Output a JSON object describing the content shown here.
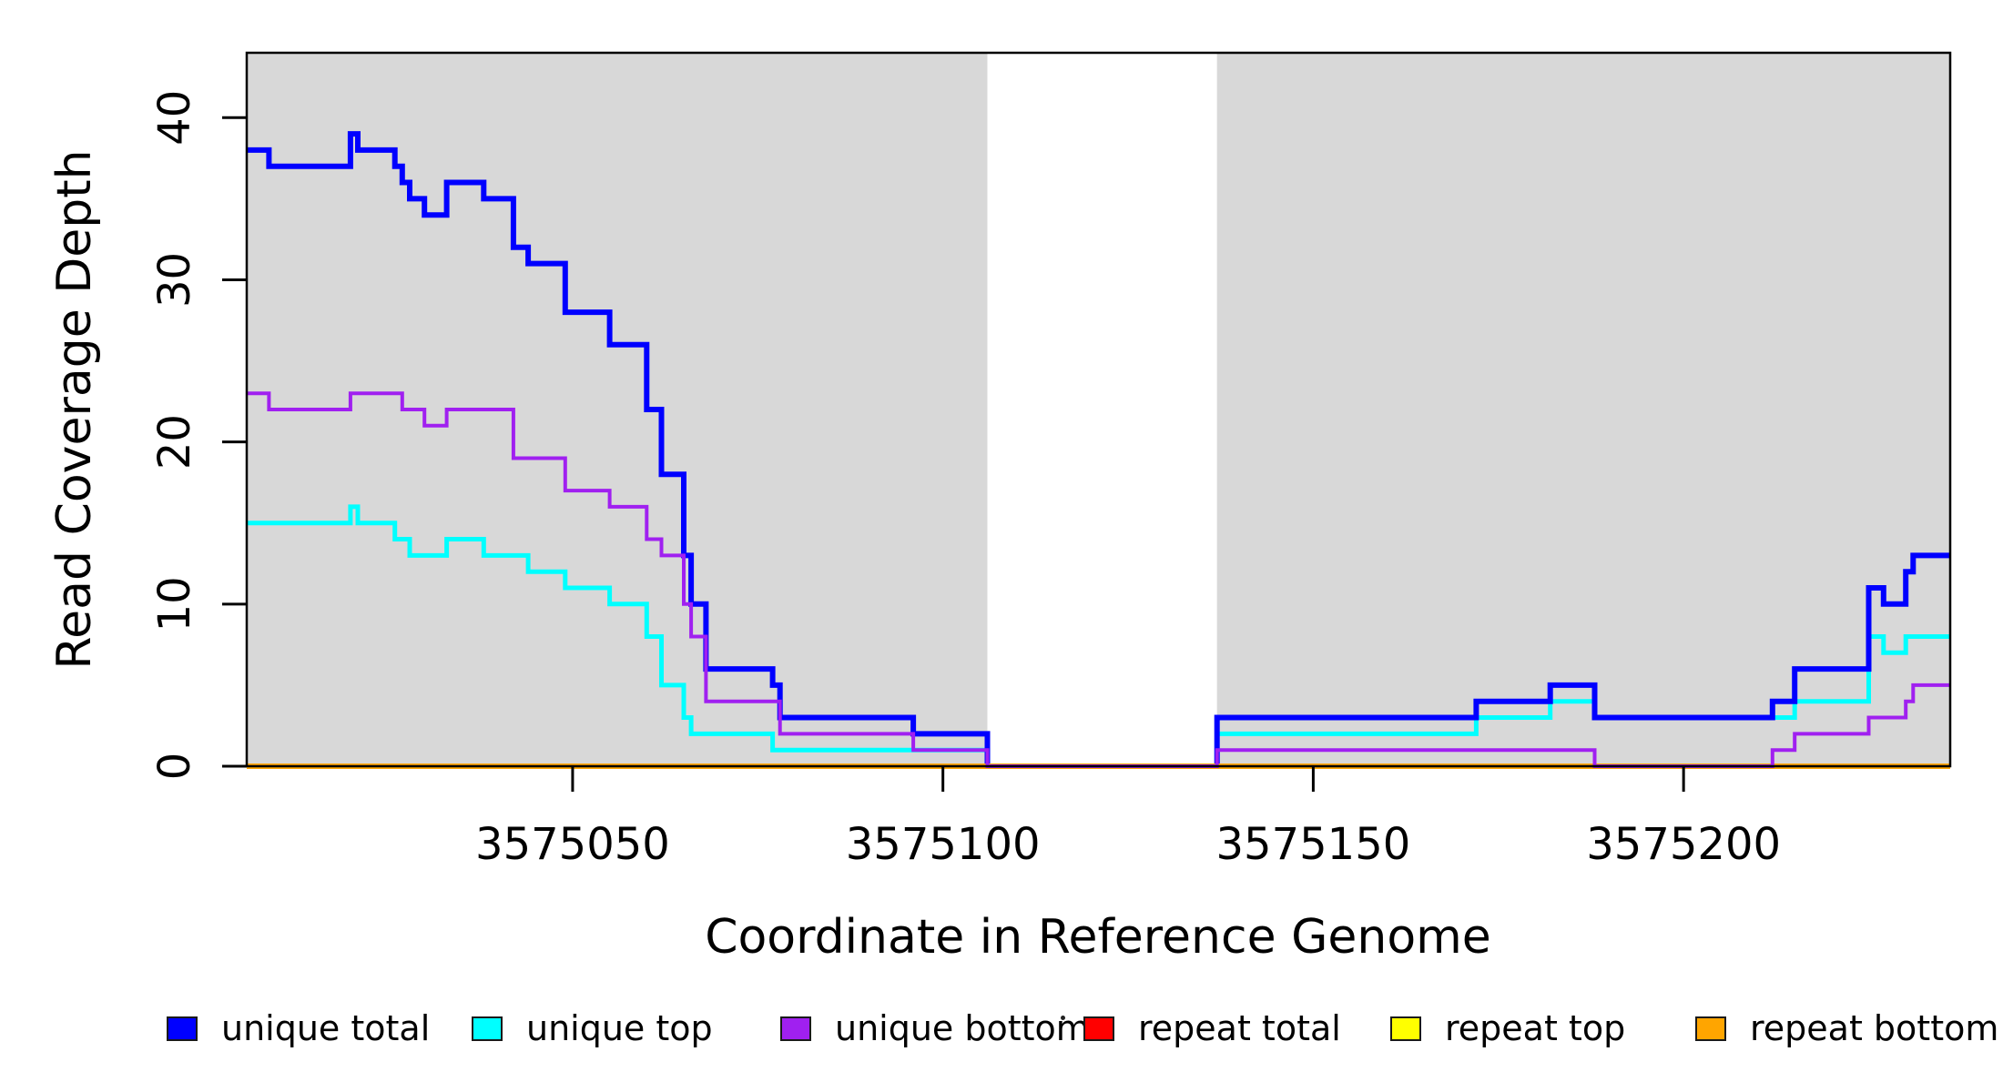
{
  "figure": {
    "background": "#ffffff",
    "x_axis_title": "Coordinate in Reference Genome",
    "y_axis_title": "Read Coverage Depth"
  },
  "chart_data": {
    "type": "line",
    "subtype": "step-after-coverage-plot",
    "title": "",
    "xlabel": "Coordinate in Reference Genome",
    "ylabel": "Read Coverage Depth",
    "xlim": [
      3575006,
      3575236
    ],
    "ylim": [
      0,
      44
    ],
    "xticks": [
      3575050,
      3575100,
      3575150,
      3575200
    ],
    "xtick_labels": [
      "3575050",
      "3575100",
      "3575150",
      "3575200"
    ],
    "yticks": [
      0,
      10,
      20,
      30,
      40
    ],
    "ytick_labels": [
      "0",
      "10",
      "20",
      "30",
      "40"
    ],
    "grid": false,
    "plot_background": "#ffffff",
    "shaded_regions": [
      {
        "name": "covered-region-left",
        "start": 3575006,
        "end": 3575106,
        "color": "#d8d8d8"
      },
      {
        "name": "covered-region-right",
        "start": 3575137,
        "end": 3575236,
        "color": "#d8d8d8"
      }
    ],
    "gap_region": {
      "name": "uncovered-gap",
      "start": 3575106,
      "end": 3575137,
      "color": "#ffffff"
    },
    "draw_order": [
      "repeat total",
      "repeat top",
      "unique top",
      "unique total",
      "repeat bottom",
      "unique bottom"
    ],
    "series": [
      {
        "name": "unique total",
        "color": "#0000ff",
        "line_width": 6,
        "steps": [
          [
            3575006,
            38
          ],
          [
            3575009,
            37
          ],
          [
            3575020,
            39
          ],
          [
            3575021,
            38
          ],
          [
            3575026,
            37
          ],
          [
            3575027,
            36
          ],
          [
            3575028,
            35
          ],
          [
            3575030,
            34
          ],
          [
            3575033,
            36
          ],
          [
            3575038,
            35
          ],
          [
            3575042,
            32
          ],
          [
            3575044,
            31
          ],
          [
            3575049,
            28
          ],
          [
            3575055,
            26
          ],
          [
            3575060,
            22
          ],
          [
            3575062,
            18
          ],
          [
            3575065,
            13
          ],
          [
            3575066,
            10
          ],
          [
            3575068,
            6
          ],
          [
            3575077,
            5
          ],
          [
            3575078,
            3
          ],
          [
            3575096,
            2
          ],
          [
            3575106,
            0
          ],
          [
            3575137,
            3
          ],
          [
            3575172,
            4
          ],
          [
            3575182,
            5
          ],
          [
            3575188,
            3
          ],
          [
            3575212,
            4
          ],
          [
            3575215,
            6
          ],
          [
            3575225,
            11
          ],
          [
            3575227,
            10
          ],
          [
            3575230,
            12
          ],
          [
            3575231,
            13
          ]
        ]
      },
      {
        "name": "unique top",
        "color": "#00ffff",
        "line_width": 5,
        "steps": [
          [
            3575006,
            15
          ],
          [
            3575020,
            16
          ],
          [
            3575021,
            15
          ],
          [
            3575026,
            14
          ],
          [
            3575028,
            13
          ],
          [
            3575033,
            14
          ],
          [
            3575038,
            13
          ],
          [
            3575044,
            12
          ],
          [
            3575049,
            11
          ],
          [
            3575055,
            10
          ],
          [
            3575060,
            8
          ],
          [
            3575062,
            5
          ],
          [
            3575065,
            3
          ],
          [
            3575066,
            2
          ],
          [
            3575077,
            1
          ],
          [
            3575106,
            0
          ],
          [
            3575137,
            2
          ],
          [
            3575172,
            3
          ],
          [
            3575182,
            4
          ],
          [
            3575188,
            3
          ],
          [
            3575215,
            4
          ],
          [
            3575225,
            8
          ],
          [
            3575227,
            7
          ],
          [
            3575230,
            8
          ]
        ]
      },
      {
        "name": "unique bottom",
        "color": "#a020f0",
        "line_width": 4,
        "steps": [
          [
            3575006,
            23
          ],
          [
            3575009,
            22
          ],
          [
            3575020,
            23
          ],
          [
            3575027,
            22
          ],
          [
            3575030,
            21
          ],
          [
            3575033,
            22
          ],
          [
            3575042,
            19
          ],
          [
            3575049,
            17
          ],
          [
            3575055,
            16
          ],
          [
            3575060,
            14
          ],
          [
            3575062,
            13
          ],
          [
            3575065,
            10
          ],
          [
            3575066,
            8
          ],
          [
            3575068,
            4
          ],
          [
            3575078,
            2
          ],
          [
            3575096,
            1
          ],
          [
            3575106,
            0
          ],
          [
            3575137,
            1
          ],
          [
            3575188,
            0
          ],
          [
            3575212,
            1
          ],
          [
            3575215,
            2
          ],
          [
            3575225,
            3
          ],
          [
            3575230,
            4
          ],
          [
            3575231,
            5
          ]
        ]
      },
      {
        "name": "repeat total",
        "color": "#ff0000",
        "line_width": 4,
        "steps": [
          [
            3575006,
            0
          ]
        ]
      },
      {
        "name": "repeat top",
        "color": "#ffff00",
        "line_width": 4,
        "steps": [
          [
            3575006,
            0
          ]
        ]
      },
      {
        "name": "repeat bottom",
        "color": "#ffa500",
        "line_width": 6,
        "steps": [
          [
            3575006,
            0
          ]
        ]
      }
    ]
  },
  "legend": {
    "items": [
      {
        "label": "unique total",
        "color": "#0000ff"
      },
      {
        "label": "unique top",
        "color": "#00ffff"
      },
      {
        "label": "unique bottom",
        "color": "#a020f0"
      },
      {
        "label": "repeat total",
        "color": "#ff0000"
      },
      {
        "label": "repeat top",
        "color": "#ffff00"
      },
      {
        "label": "repeat bottom",
        "color": "#ffa500"
      }
    ]
  }
}
